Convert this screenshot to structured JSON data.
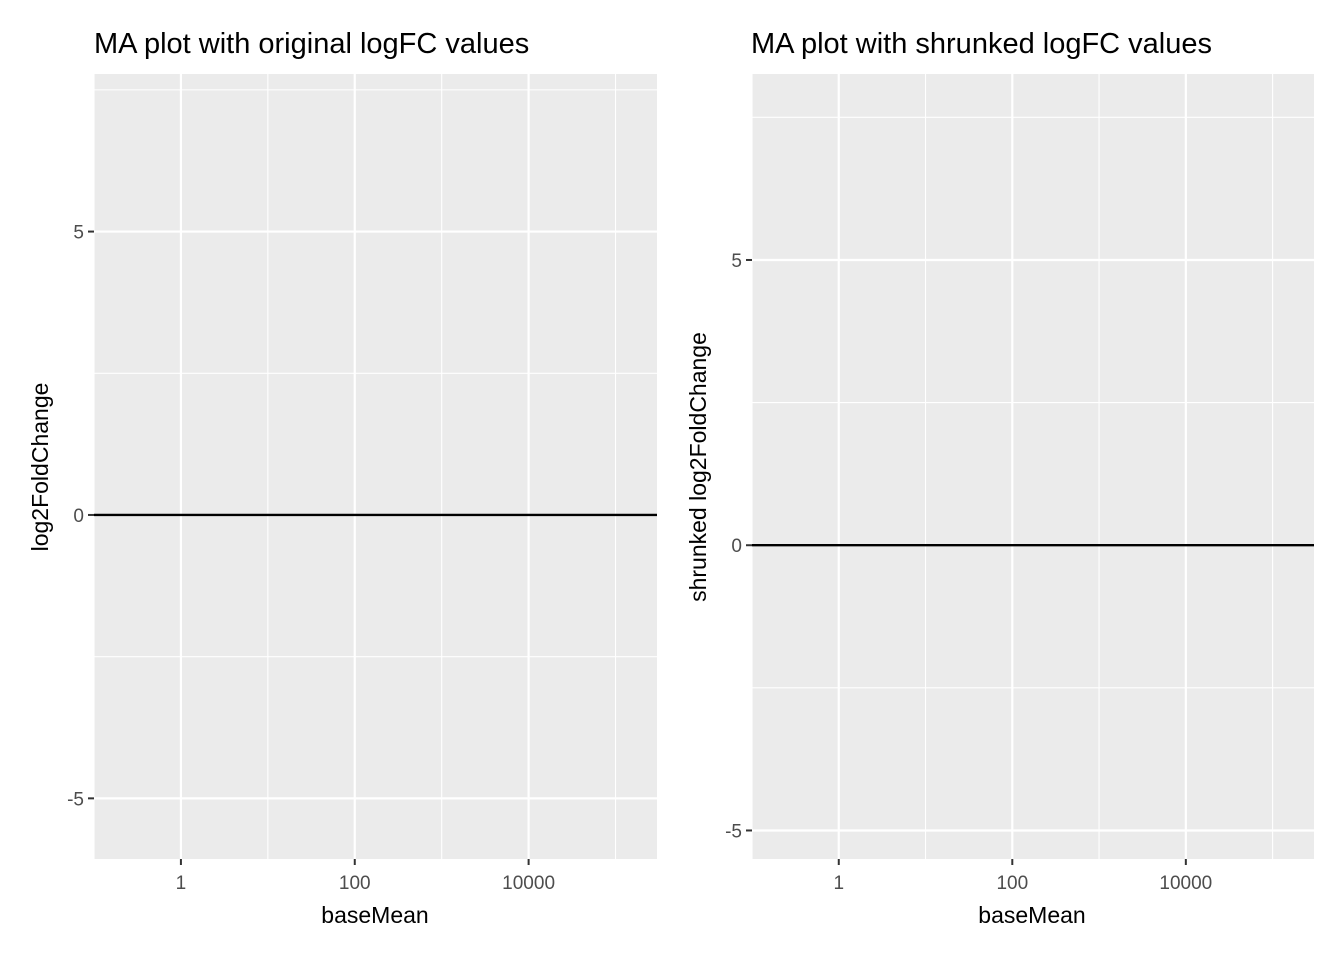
{
  "chart_data": [
    {
      "type": "scatter",
      "title": "MA plot with original logFC values",
      "xlabel": "baseMean",
      "ylabel": "log2FoldChange",
      "x_scale": "log10",
      "x_ticks": [
        1,
        100,
        10000
      ],
      "x_tick_labels": [
        "1",
        "100",
        "10000"
      ],
      "y_ticks": [
        -5,
        0,
        5
      ],
      "y_tick_labels": [
        "-5",
        "0",
        "5"
      ],
      "xlim": [
        0.1,
        300000
      ],
      "ylim": [
        -6.07,
        7.78
      ],
      "reference_line": {
        "y": 0
      },
      "points": [],
      "grid": true,
      "background": "#ebebeb",
      "grid_color": "#ffffff",
      "line_color": "#000000"
    },
    {
      "type": "scatter",
      "title": "MA plot with shrunked logFC values",
      "xlabel": "baseMean",
      "ylabel": "shrunked log2FoldChange",
      "x_scale": "log10",
      "x_ticks": [
        1,
        100,
        10000
      ],
      "x_tick_labels": [
        "1",
        "100",
        "10000"
      ],
      "y_ticks": [
        -5,
        0,
        5
      ],
      "y_tick_labels": [
        "-5",
        "0",
        "5"
      ],
      "xlim": [
        0.1,
        300000
      ],
      "ylim": [
        -5.5,
        8.26
      ],
      "reference_line": {
        "y": 0
      },
      "points": [],
      "grid": true,
      "background": "#ebebeb",
      "grid_color": "#ffffff",
      "line_color": "#000000"
    }
  ]
}
